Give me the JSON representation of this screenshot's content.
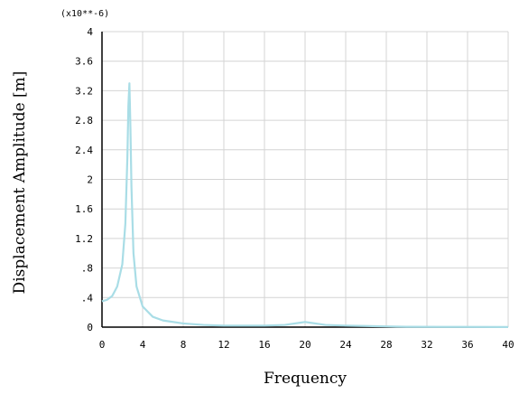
{
  "chart_data": {
    "type": "line",
    "title": "",
    "xlabel": "Frequency",
    "ylabel": "Displacement Amplitude [m]",
    "y_multiplier": "(x10**-6)",
    "xlim": [
      0,
      40
    ],
    "ylim": [
      0,
      4
    ],
    "grid": true,
    "x_ticks": [
      "0",
      "4",
      "8",
      "12",
      "16",
      "20",
      "24",
      "28",
      "32",
      "36",
      "40"
    ],
    "y_ticks": [
      "0",
      ".4",
      ".8",
      "1.2",
      "1.6",
      "2",
      "2.4",
      "2.8",
      "3.2",
      "3.6",
      "4"
    ],
    "colors": {
      "series": "#a9dde6",
      "axis": "#000000",
      "grid": "#d4d4d4"
    },
    "series": [
      {
        "values": [
          [
            0,
            0.35
          ],
          [
            0.5,
            0.37
          ],
          [
            1.0,
            0.42
          ],
          [
            1.5,
            0.55
          ],
          [
            2.0,
            0.85
          ],
          [
            2.3,
            1.4
          ],
          [
            2.5,
            2.3
          ],
          [
            2.6,
            3.0
          ],
          [
            2.7,
            3.3
          ],
          [
            2.8,
            2.7
          ],
          [
            2.9,
            1.9
          ],
          [
            3.1,
            1.0
          ],
          [
            3.4,
            0.55
          ],
          [
            4.0,
            0.28
          ],
          [
            5.0,
            0.14
          ],
          [
            6.0,
            0.09
          ],
          [
            8.0,
            0.05
          ],
          [
            10.0,
            0.03
          ],
          [
            12.0,
            0.02
          ],
          [
            14.0,
            0.02
          ],
          [
            16.0,
            0.02
          ],
          [
            18.0,
            0.03
          ],
          [
            19.5,
            0.06
          ],
          [
            20.0,
            0.07
          ],
          [
            20.5,
            0.06
          ],
          [
            22.0,
            0.03
          ],
          [
            24.0,
            0.02
          ],
          [
            26.0,
            0.015
          ],
          [
            28.0,
            0.01
          ],
          [
            30.0,
            0.005
          ],
          [
            34.0,
            0.003
          ],
          [
            40.0,
            0.002
          ]
        ]
      }
    ]
  }
}
